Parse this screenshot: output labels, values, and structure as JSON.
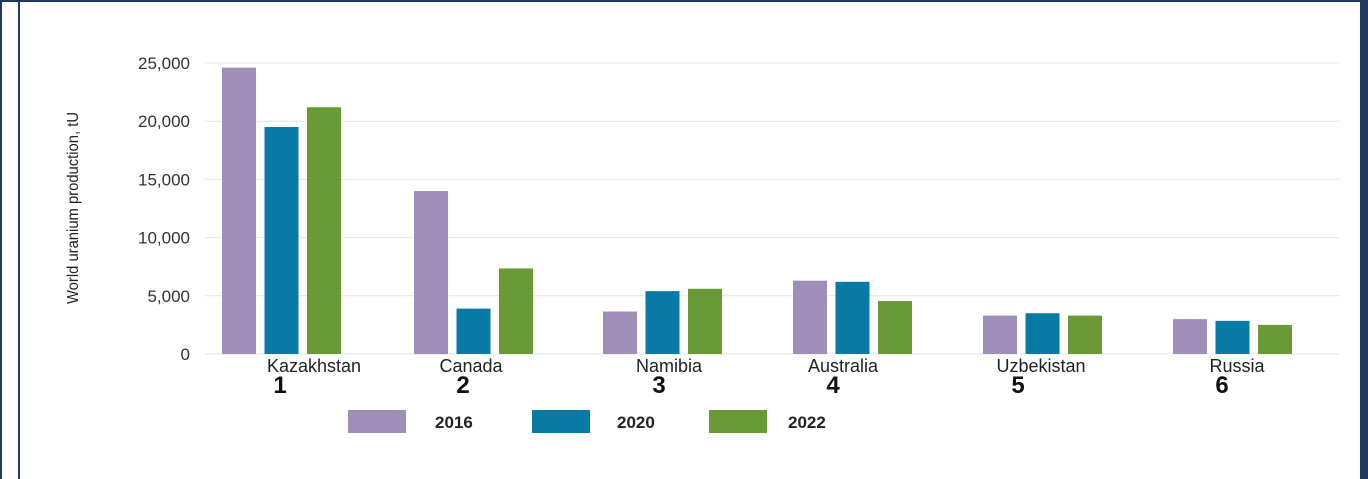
{
  "chart_data": {
    "type": "bar",
    "ylabel": "World uranium production, tU",
    "ylim": [
      0,
      25000
    ],
    "yticks": [
      "0",
      "5,000",
      "10,000",
      "15,000",
      "20,000",
      "25,000"
    ],
    "ytick_values": [
      0,
      5000,
      10000,
      15000,
      20000,
      25000
    ],
    "grid": true,
    "legend_position": "bottom-center",
    "categories": [
      "Kazakhstan",
      "Canada",
      "Namibia",
      "Australia",
      "Uzbekistan",
      "Russia"
    ],
    "ranks": [
      "1",
      "2",
      "3",
      "4",
      "5",
      "6"
    ],
    "series": [
      {
        "name": "2016",
        "color": "#9f8fb8",
        "values": [
          24600,
          14000,
          3650,
          6300,
          3300,
          3000
        ]
      },
      {
        "name": "2020",
        "color": "#0979a6",
        "values": [
          19500,
          3900,
          5400,
          6200,
          3500,
          2850
        ]
      },
      {
        "name": "2022",
        "color": "#6a9a35",
        "values": [
          21200,
          7350,
          5600,
          4550,
          3300,
          2500
        ]
      }
    ]
  }
}
